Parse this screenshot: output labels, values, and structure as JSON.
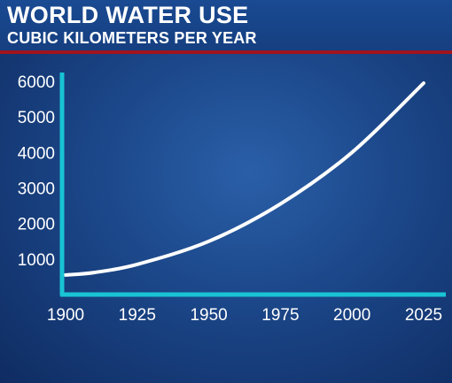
{
  "header": {
    "title": "WORLD WATER USE",
    "subtitle": "CUBIC KILOMETERS PER YEAR"
  },
  "colors": {
    "accent_bar": "#a0141e",
    "axis": "#19c3d4",
    "line": "#ffffff"
  },
  "chart_data": {
    "type": "line",
    "title": "WORLD WATER USE",
    "subtitle": "CUBIC KILOMETERS PER YEAR",
    "xlabel": "",
    "ylabel": "",
    "x_ticks": [
      "1900",
      "1925",
      "1950",
      "1975",
      "2000",
      "2025"
    ],
    "y_ticks": [
      "1000",
      "2000",
      "3000",
      "4000",
      "5000",
      "6000"
    ],
    "xlim": [
      1900,
      2025
    ],
    "ylim": [
      0,
      6000
    ],
    "grid": false,
    "series": [
      {
        "x": [
          1900,
          1910,
          1925,
          1950,
          1975,
          2000,
          2025
        ],
        "y": [
          550,
          620,
          850,
          1500,
          2550,
          4000,
          5950
        ]
      }
    ]
  }
}
